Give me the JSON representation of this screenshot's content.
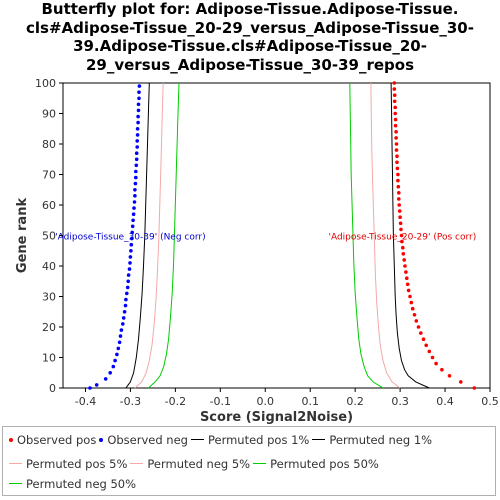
{
  "title_lines": [
    "Butterfly plot for: Adipose-Tissue.Adipose-Tissue.",
    "cls#Adipose-Tissue_20-29_versus_Adipose-Tissue_30-",
    "39.Adipose-Tissue.cls#Adipose-Tissue_20-",
    "29_versus_Adipose-Tissue_30-39_repos"
  ],
  "chart_data": {
    "type": "scatter",
    "xlabel": "Score (Signal2Noise)",
    "ylabel": "Gene rank",
    "xlim": [
      -0.45,
      0.5
    ],
    "ylim": [
      0,
      100
    ],
    "xticks": [
      "-0.4",
      "-0.3",
      "-0.2",
      "-0.1",
      "0.0",
      "0.1",
      "0.2",
      "0.3",
      "0.4",
      "0.5"
    ],
    "yticks": [
      "0",
      "10",
      "20",
      "30",
      "40",
      "50",
      "60",
      "70",
      "80",
      "90",
      "100"
    ],
    "grid": false,
    "annotations": {
      "neg": "'Adipose-Tissue_30-39' (Neg corr)",
      "pos": "'Adipose-Tissue_20-29' (Pos corr)"
    },
    "series": [
      {
        "key": "obs_pos",
        "name": "Observed pos",
        "style": "dots",
        "color": "#ff0000",
        "points": [
          [
            0.465,
            0
          ],
          [
            0.435,
            2
          ],
          [
            0.41,
            4
          ],
          [
            0.393,
            6
          ],
          [
            0.38,
            8
          ],
          [
            0.372,
            10
          ],
          [
            0.365,
            12
          ],
          [
            0.358,
            14
          ],
          [
            0.352,
            16
          ],
          [
            0.346,
            18
          ],
          [
            0.341,
            20
          ],
          [
            0.336,
            22
          ],
          [
            0.332,
            24
          ],
          [
            0.328,
            26
          ],
          [
            0.325,
            28
          ],
          [
            0.322,
            30
          ],
          [
            0.319,
            32
          ],
          [
            0.317,
            34
          ],
          [
            0.315,
            36
          ],
          [
            0.313,
            38
          ],
          [
            0.311,
            40
          ],
          [
            0.309,
            42
          ],
          [
            0.307,
            44
          ],
          [
            0.306,
            46
          ],
          [
            0.304,
            48
          ],
          [
            0.303,
            50
          ],
          [
            0.302,
            52
          ],
          [
            0.301,
            54
          ],
          [
            0.3,
            56
          ],
          [
            0.299,
            58
          ],
          [
            0.298,
            60
          ],
          [
            0.297,
            62
          ],
          [
            0.297,
            64
          ],
          [
            0.296,
            66
          ],
          [
            0.295,
            68
          ],
          [
            0.295,
            70
          ],
          [
            0.294,
            72
          ],
          [
            0.293,
            74
          ],
          [
            0.293,
            76
          ],
          [
            0.292,
            78
          ],
          [
            0.292,
            80
          ],
          [
            0.291,
            82
          ],
          [
            0.291,
            84
          ],
          [
            0.29,
            86
          ],
          [
            0.29,
            88
          ],
          [
            0.289,
            90
          ],
          [
            0.289,
            92
          ],
          [
            0.288,
            94
          ],
          [
            0.288,
            96
          ],
          [
            0.287,
            98
          ],
          [
            0.287,
            100
          ]
        ]
      },
      {
        "key": "obs_neg",
        "name": "Observed neg",
        "style": "dots",
        "color": "#0000ff",
        "points": [
          [
            -0.39,
            0
          ],
          [
            -0.375,
            1
          ],
          [
            -0.355,
            3
          ],
          [
            -0.345,
            5
          ],
          [
            -0.338,
            7
          ],
          [
            -0.334,
            9
          ],
          [
            -0.33,
            11
          ],
          [
            -0.327,
            13
          ],
          [
            -0.324,
            15
          ],
          [
            -0.322,
            17
          ],
          [
            -0.32,
            19
          ],
          [
            -0.317,
            21
          ],
          [
            -0.315,
            23
          ],
          [
            -0.313,
            25
          ],
          [
            -0.311,
            27
          ],
          [
            -0.31,
            29
          ],
          [
            -0.308,
            31
          ],
          [
            -0.306,
            33
          ],
          [
            -0.305,
            35
          ],
          [
            -0.304,
            37
          ],
          [
            -0.302,
            39
          ],
          [
            -0.301,
            41
          ],
          [
            -0.3,
            43
          ],
          [
            -0.299,
            45
          ],
          [
            -0.298,
            47
          ],
          [
            -0.297,
            49
          ],
          [
            -0.296,
            51
          ],
          [
            -0.295,
            53
          ],
          [
            -0.294,
            55
          ],
          [
            -0.293,
            57
          ],
          [
            -0.292,
            59
          ],
          [
            -0.291,
            61
          ],
          [
            -0.29,
            63
          ],
          [
            -0.29,
            65
          ],
          [
            -0.289,
            67
          ],
          [
            -0.288,
            69
          ],
          [
            -0.288,
            71
          ],
          [
            -0.287,
            73
          ],
          [
            -0.286,
            75
          ],
          [
            -0.286,
            77
          ],
          [
            -0.285,
            79
          ],
          [
            -0.285,
            81
          ],
          [
            -0.284,
            83
          ],
          [
            -0.284,
            85
          ],
          [
            -0.283,
            87
          ],
          [
            -0.283,
            89
          ],
          [
            -0.282,
            91
          ],
          [
            -0.282,
            93
          ],
          [
            -0.281,
            95
          ],
          [
            -0.281,
            97
          ],
          [
            -0.28,
            99
          ]
        ]
      },
      {
        "key": "perm_pos_1",
        "name": "Permuted pos 1%",
        "style": "line",
        "color": "#000000",
        "points": [
          [
            0.365,
            0
          ],
          [
            0.335,
            2
          ],
          [
            0.318,
            4
          ],
          [
            0.31,
            6
          ],
          [
            0.303,
            9
          ],
          [
            0.298,
            13
          ],
          [
            0.294,
            18
          ],
          [
            0.291,
            24
          ],
          [
            0.289,
            30
          ],
          [
            0.287,
            40
          ],
          [
            0.285,
            50
          ],
          [
            0.284,
            60
          ],
          [
            0.283,
            70
          ],
          [
            0.282,
            80
          ],
          [
            0.281,
            90
          ],
          [
            0.28,
            100
          ]
        ]
      },
      {
        "key": "perm_neg_1",
        "name": "Permuted neg 1%",
        "style": "line",
        "color": "#000000",
        "points": [
          [
            -0.31,
            0
          ],
          [
            -0.3,
            2
          ],
          [
            -0.293,
            5
          ],
          [
            -0.287,
            10
          ],
          [
            -0.282,
            16
          ],
          [
            -0.278,
            23
          ],
          [
            -0.274,
            31
          ],
          [
            -0.271,
            40
          ],
          [
            -0.268,
            50
          ],
          [
            -0.266,
            60
          ],
          [
            -0.264,
            70
          ],
          [
            -0.262,
            80
          ],
          [
            -0.26,
            90
          ],
          [
            -0.258,
            100
          ]
        ]
      },
      {
        "key": "perm_pos_5",
        "name": "Permuted pos 5%",
        "style": "line",
        "color": "#f4a8a8",
        "points": [
          [
            0.3,
            0
          ],
          [
            0.282,
            2
          ],
          [
            0.27,
            5
          ],
          [
            0.262,
            9
          ],
          [
            0.256,
            14
          ],
          [
            0.252,
            20
          ],
          [
            0.248,
            28
          ],
          [
            0.245,
            37
          ],
          [
            0.243,
            47
          ],
          [
            0.241,
            57
          ],
          [
            0.239,
            67
          ],
          [
            0.237,
            78
          ],
          [
            0.236,
            89
          ],
          [
            0.235,
            100
          ]
        ]
      },
      {
        "key": "perm_neg_5",
        "name": "Permuted neg 5%",
        "style": "line",
        "color": "#f4a8a8",
        "points": [
          [
            -0.29,
            0
          ],
          [
            -0.275,
            2
          ],
          [
            -0.265,
            5
          ],
          [
            -0.258,
            9
          ],
          [
            -0.252,
            14
          ],
          [
            -0.247,
            21
          ],
          [
            -0.243,
            29
          ],
          [
            -0.24,
            38
          ],
          [
            -0.237,
            48
          ],
          [
            -0.235,
            58
          ],
          [
            -0.233,
            68
          ],
          [
            -0.231,
            79
          ],
          [
            -0.229,
            90
          ],
          [
            -0.227,
            100
          ]
        ]
      },
      {
        "key": "perm_pos_50",
        "name": "Permuted pos 50%",
        "style": "line",
        "color": "#00cc00",
        "points": [
          [
            0.262,
            0
          ],
          [
            0.24,
            2
          ],
          [
            0.228,
            4
          ],
          [
            0.22,
            7
          ],
          [
            0.213,
            11
          ],
          [
            0.208,
            16
          ],
          [
            0.204,
            23
          ],
          [
            0.2,
            31
          ],
          [
            0.197,
            41
          ],
          [
            0.195,
            51
          ],
          [
            0.193,
            61
          ],
          [
            0.191,
            71
          ],
          [
            0.19,
            81
          ],
          [
            0.189,
            91
          ],
          [
            0.188,
            100
          ]
        ]
      },
      {
        "key": "perm_neg_50",
        "name": "Permuted neg 50%",
        "style": "line",
        "color": "#00cc00",
        "points": [
          [
            -0.26,
            0
          ],
          [
            -0.245,
            2
          ],
          [
            -0.234,
            4
          ],
          [
            -0.226,
            7
          ],
          [
            -0.22,
            11
          ],
          [
            -0.215,
            16
          ],
          [
            -0.211,
            23
          ],
          [
            -0.207,
            31
          ],
          [
            -0.204,
            41
          ],
          [
            -0.202,
            51
          ],
          [
            -0.2,
            61
          ],
          [
            -0.198,
            71
          ],
          [
            -0.196,
            81
          ],
          [
            -0.194,
            91
          ],
          [
            -0.192,
            100
          ]
        ]
      }
    ],
    "legend_rows": [
      [
        "obs_pos",
        "obs_neg",
        "perm_pos_1",
        "perm_neg_1"
      ],
      [
        "perm_pos_5",
        "perm_neg_5",
        "perm_pos_50"
      ],
      [
        "perm_neg_50"
      ]
    ]
  }
}
